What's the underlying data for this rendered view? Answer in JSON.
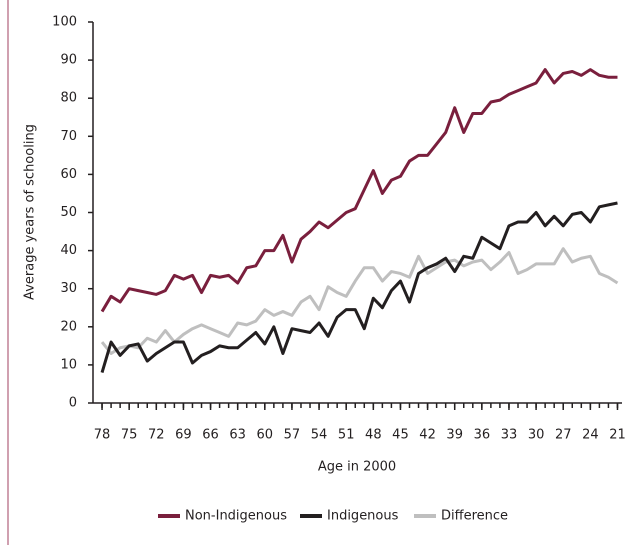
{
  "chart_data": {
    "type": "line",
    "x_label": "Age in 2000",
    "y_label": "Average years of schooling",
    "x": [
      78,
      77,
      76,
      75,
      74,
      73,
      72,
      71,
      70,
      69,
      68,
      67,
      66,
      65,
      64,
      63,
      62,
      61,
      60,
      59,
      58,
      57,
      56,
      55,
      54,
      53,
      52,
      51,
      50,
      49,
      48,
      47,
      46,
      45,
      44,
      43,
      42,
      41,
      40,
      39,
      38,
      37,
      36,
      35,
      34,
      33,
      32,
      31,
      30,
      29,
      28,
      27,
      26,
      25,
      24,
      23,
      22,
      21
    ],
    "xlim": [
      79,
      20.5
    ],
    "xticks": [
      78,
      75,
      72,
      69,
      66,
      63,
      60,
      57,
      54,
      51,
      48,
      45,
      42,
      39,
      36,
      33,
      30,
      27,
      24,
      21
    ],
    "ylim": [
      0,
      100
    ],
    "yticks": [
      0,
      10,
      20,
      30,
      40,
      50,
      60,
      70,
      80,
      90,
      100
    ],
    "grid": false,
    "legend": "bottom",
    "series": [
      {
        "name": "Non-Indigenous",
        "color": "#7a1f3d",
        "values": [
          24,
          28,
          26.5,
          30,
          29.5,
          29,
          28.5,
          29.5,
          33.5,
          32.5,
          33.5,
          29,
          33.5,
          33,
          33.5,
          31.5,
          35.5,
          36,
          40,
          40,
          44,
          37,
          43,
          45,
          47.5,
          46,
          48,
          50,
          51,
          56,
          61,
          55,
          58.5,
          59.5,
          63.5,
          65,
          65,
          68,
          71,
          77.5,
          71,
          76,
          76,
          79,
          79.5,
          81,
          82,
          83,
          84,
          87.5,
          84,
          86.5,
          87,
          86,
          87.5,
          86,
          85.5,
          85.5
        ]
      },
      {
        "name": "Indigenous",
        "color": "#231f20",
        "values": [
          8,
          16,
          12.5,
          15,
          15.5,
          11,
          13,
          14.5,
          16,
          16,
          10.5,
          12.5,
          13.5,
          15,
          14.5,
          14.5,
          16.5,
          18.5,
          15.5,
          20,
          13,
          19.5,
          19,
          18.5,
          21,
          17.5,
          22.5,
          24.5,
          24.5,
          19.5,
          27.5,
          25,
          29.5,
          32,
          26.5,
          34,
          35.5,
          36.5,
          38,
          34.5,
          38.5,
          38,
          43.5,
          42,
          40.5,
          46.5,
          47.5,
          47.5,
          50,
          46.5,
          49,
          46.5,
          49.5,
          50,
          47.5,
          51.5,
          52,
          52.5
        ]
      },
      {
        "name": "Difference",
        "color": "#bfbfbf",
        "values": [
          16,
          13,
          14.5,
          15,
          14.5,
          17,
          16,
          19,
          16,
          18,
          19.5,
          20.5,
          19.5,
          18.5,
          17.5,
          21,
          20.5,
          21.5,
          24.5,
          23,
          24,
          23,
          26.5,
          28,
          24.5,
          30.5,
          29,
          28,
          32,
          35.5,
          35.5,
          32,
          34.5,
          34,
          33,
          38.5,
          34,
          35.5,
          37,
          37.5,
          36,
          37,
          37.5,
          35,
          37,
          39.5,
          34,
          35,
          36.5,
          36.5,
          36.5,
          40.5,
          37,
          38,
          38.5,
          34,
          33,
          31.5
        ]
      }
    ]
  }
}
